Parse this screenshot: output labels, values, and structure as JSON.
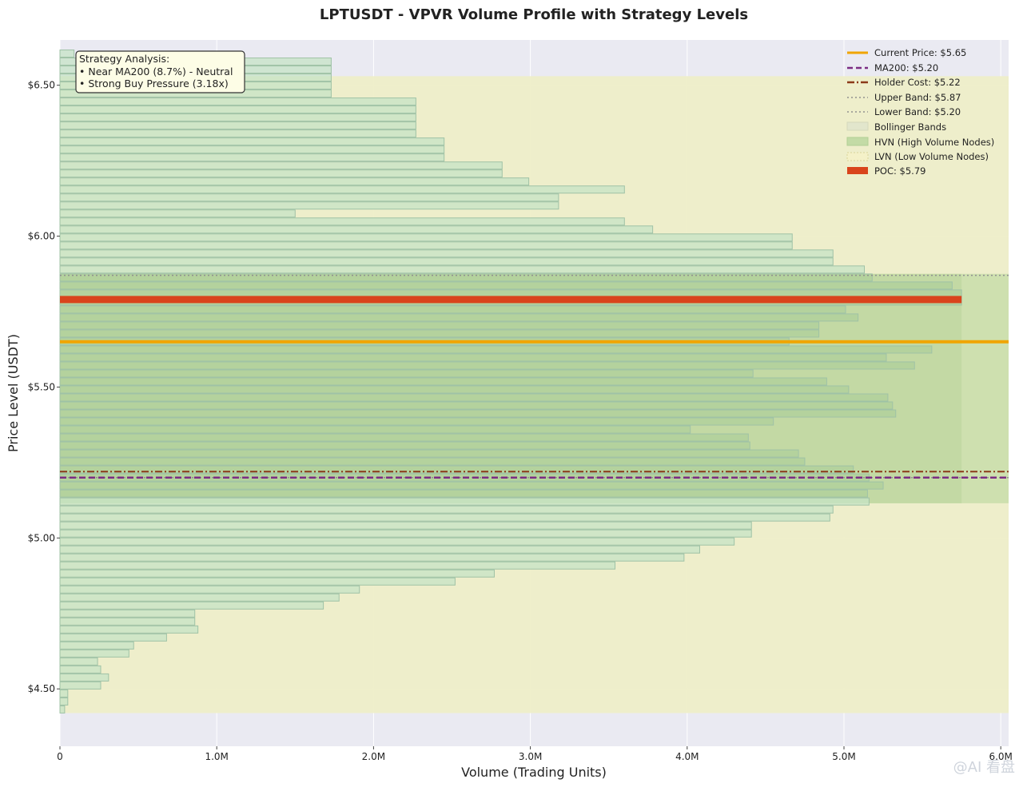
{
  "chart_data": {
    "type": "bar",
    "orientation": "horizontal",
    "title": "LPTUSDT - VPVR Volume Profile with Strategy Levels",
    "xlabel": "Volume (Trading Units)",
    "ylabel": "Price Level (USDT)",
    "xlim": [
      0,
      6050000
    ],
    "ylim": [
      4.31,
      6.65
    ],
    "x_ticks": [
      {
        "value": 0,
        "label": "0"
      },
      {
        "value": 1000000,
        "label": "1.0M"
      },
      {
        "value": 2000000,
        "label": "2.0M"
      },
      {
        "value": 3000000,
        "label": "3.0M"
      },
      {
        "value": 4000000,
        "label": "4.0M"
      },
      {
        "value": 5000000,
        "label": "5.0M"
      },
      {
        "value": 6000000,
        "label": "6.0M"
      }
    ],
    "y_ticks": [
      {
        "value": 4.5,
        "label": "$4.50"
      },
      {
        "value": 5.0,
        "label": "$5.00"
      },
      {
        "value": 5.5,
        "label": "$5.50"
      },
      {
        "value": 6.0,
        "label": "$6.00"
      },
      {
        "value": 6.5,
        "label": "$6.50"
      }
    ],
    "price_min": 4.42,
    "price_step": 0.0265,
    "volumes": [
      30000,
      50000,
      50000,
      260000,
      310000,
      260000,
      240000,
      440000,
      470000,
      680000,
      880000,
      860000,
      860000,
      1680000,
      1780000,
      1910000,
      2520000,
      2770000,
      3540000,
      3980000,
      4080000,
      4300000,
      4410000,
      4410000,
      4910000,
      4930000,
      5160000,
      5150000,
      5250000,
      5160000,
      5060000,
      4750000,
      4710000,
      4400000,
      4390000,
      4020000,
      4550000,
      5330000,
      5310000,
      5280000,
      5030000,
      4890000,
      4420000,
      5450000,
      5270000,
      5560000,
      4650000,
      4840000,
      4840000,
      5090000,
      5010000,
      5750000,
      5750000,
      5690000,
      5180000,
      5130000,
      4930000,
      4930000,
      4670000,
      4670000,
      3780000,
      3600000,
      1500000,
      3180000,
      3180000,
      3600000,
      2990000,
      2820000,
      2820000,
      2450000,
      2450000,
      2450000,
      2270000,
      2270000,
      2270000,
      2270000,
      2270000,
      1730000,
      1730000,
      1730000,
      1730000,
      1730000,
      90000
    ],
    "hvn_range": [
      5.115,
      5.875
    ],
    "hvn_max_volume": 5750000,
    "bollinger_range": [
      4.42,
      6.53
    ],
    "levels": {
      "current_price": 5.65,
      "ma200": 5.2,
      "holder_cost": 5.22,
      "upper_band": 5.87,
      "lower_band": 5.2,
      "poc": 5.79
    },
    "legend": [
      {
        "key": "current",
        "label": "Current Price: $5.65"
      },
      {
        "key": "ma200",
        "label": "MA200: $5.20"
      },
      {
        "key": "holder",
        "label": "Holder Cost: $5.22"
      },
      {
        "key": "upper",
        "label": "Upper Band: $5.87"
      },
      {
        "key": "lower",
        "label": "Lower Band: $5.20"
      },
      {
        "key": "bollinger",
        "label": "Bollinger Bands"
      },
      {
        "key": "hvn",
        "label": "HVN (High Volume Nodes)"
      },
      {
        "key": "lvn",
        "label": "LVN (Low Volume Nodes)"
      },
      {
        "key": "poc",
        "label": "POC: $5.79"
      }
    ],
    "legend_position": "top-right",
    "annotation": {
      "position": "top-left",
      "lines": [
        "Strategy Analysis:",
        "• Near MA200 (8.7%) - Neutral",
        "• Strong Buy Pressure (3.18x)"
      ]
    },
    "colors": {
      "plot_bg": "#eaeaf2",
      "bollinger_fill": "#eeeec8",
      "hvn_fill": "#c3dba6",
      "bar_fill": "#c6e3c6",
      "bar_edge": "#9fc2a6",
      "current": "#f0a500",
      "ma200": "#7b2d83",
      "holder": "#8b3a1a",
      "band": "#909090",
      "poc": "#d9441c"
    }
  },
  "watermark": "@AI 看盘"
}
